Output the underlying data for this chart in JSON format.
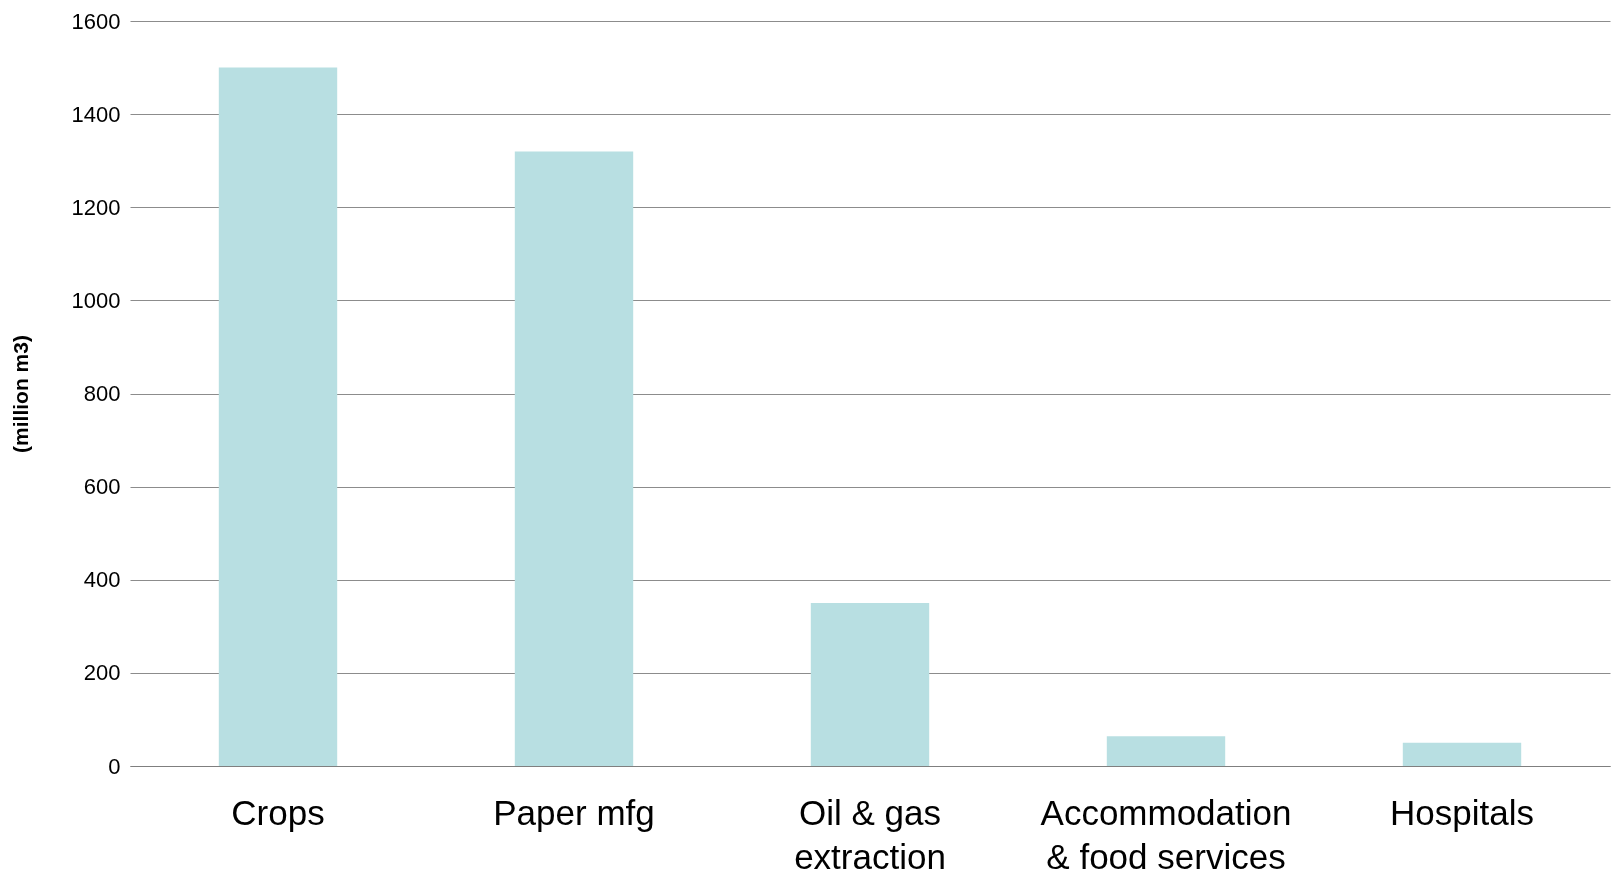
{
  "chart_data": {
    "type": "bar",
    "ylabel": "(million m3)",
    "categories": [
      "Crops",
      "Paper mfg",
      "Oil & gas extraction",
      "Accommodation & food services",
      "Hospitals"
    ],
    "values": [
      1500,
      1320,
      350,
      64,
      50
    ],
    "color": "#b8dfe2",
    "ylim": [
      0,
      1600
    ],
    "yticks": [
      0,
      200,
      400,
      600,
      800,
      1000,
      1200,
      1400,
      1600
    ],
    "grid": "y"
  }
}
